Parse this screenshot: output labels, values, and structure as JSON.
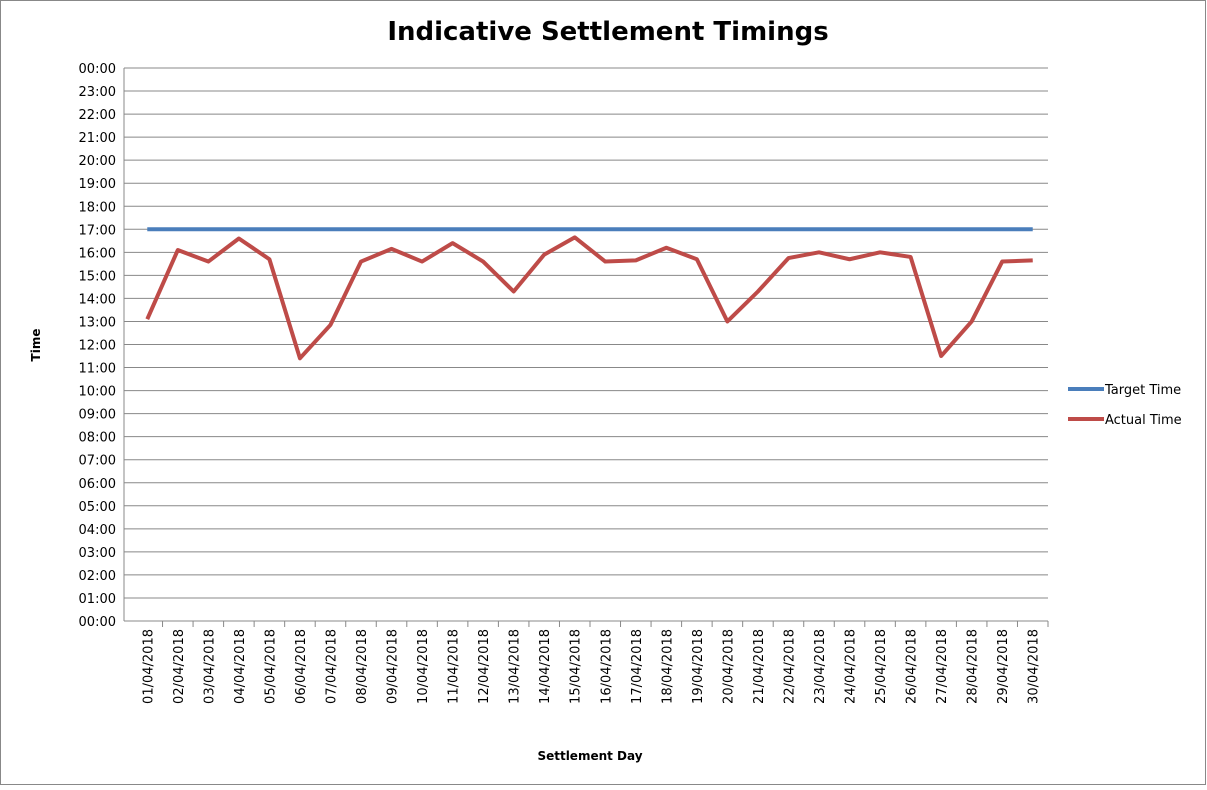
{
  "chart_data": {
    "type": "line",
    "title": "Indicative Settlement Timings",
    "x_label": "Settlement Day",
    "y_label": "Time",
    "categories": [
      "01/04/2018",
      "02/04/2018",
      "03/04/2018",
      "04/04/2018",
      "05/04/2018",
      "06/04/2018",
      "07/04/2018",
      "08/04/2018",
      "09/04/2018",
      "10/04/2018",
      "11/04/2018",
      "12/04/2018",
      "13/04/2018",
      "14/04/2018",
      "15/04/2018",
      "16/04/2018",
      "17/04/2018",
      "18/04/2018",
      "19/04/2018",
      "20/04/2018",
      "21/04/2018",
      "22/04/2018",
      "23/04/2018",
      "24/04/2018",
      "25/04/2018",
      "26/04/2018",
      "27/04/2018",
      "28/04/2018",
      "29/04/2018",
      "30/04/2018"
    ],
    "series": [
      {
        "name": "Target Time",
        "color": "#4a7ebb",
        "values": [
          17,
          17,
          17,
          17,
          17,
          17,
          17,
          17,
          17,
          17,
          17,
          17,
          17,
          17,
          17,
          17,
          17,
          17,
          17,
          17,
          17,
          17,
          17,
          17,
          17,
          17,
          17,
          17,
          17,
          17
        ]
      },
      {
        "name": "Actual Time",
        "color": "#be4b48",
        "values": [
          13.1,
          16.1,
          15.6,
          16.6,
          15.7,
          11.4,
          12.85,
          15.6,
          16.15,
          15.6,
          16.4,
          15.6,
          14.3,
          15.9,
          16.65,
          15.6,
          15.65,
          16.2,
          15.7,
          13.0,
          14.3,
          15.75,
          16.0,
          15.7,
          16.0,
          15.8,
          11.5,
          13.0,
          15.6,
          15.65
        ]
      }
    ],
    "ylim": [
      0,
      24
    ],
    "yticks": [
      {
        "value": 0,
        "label": "00:00"
      },
      {
        "value": 1,
        "label": "01:00"
      },
      {
        "value": 2,
        "label": "02:00"
      },
      {
        "value": 3,
        "label": "03:00"
      },
      {
        "value": 4,
        "label": "04:00"
      },
      {
        "value": 5,
        "label": "05:00"
      },
      {
        "value": 6,
        "label": "06:00"
      },
      {
        "value": 7,
        "label": "07:00"
      },
      {
        "value": 8,
        "label": "08:00"
      },
      {
        "value": 9,
        "label": "09:00"
      },
      {
        "value": 10,
        "label": "10:00"
      },
      {
        "value": 11,
        "label": "11:00"
      },
      {
        "value": 12,
        "label": "12:00"
      },
      {
        "value": 13,
        "label": "13:00"
      },
      {
        "value": 14,
        "label": "14:00"
      },
      {
        "value": 15,
        "label": "15:00"
      },
      {
        "value": 16,
        "label": "16:00"
      },
      {
        "value": 17,
        "label": "17:00"
      },
      {
        "value": 18,
        "label": "18:00"
      },
      {
        "value": 19,
        "label": "19:00"
      },
      {
        "value": 20,
        "label": "20:00"
      },
      {
        "value": 21,
        "label": "21:00"
      },
      {
        "value": 22,
        "label": "22:00"
      },
      {
        "value": 23,
        "label": "23:00"
      },
      {
        "value": 24,
        "label": "00:00"
      }
    ],
    "grid": true,
    "legend": "right"
  }
}
